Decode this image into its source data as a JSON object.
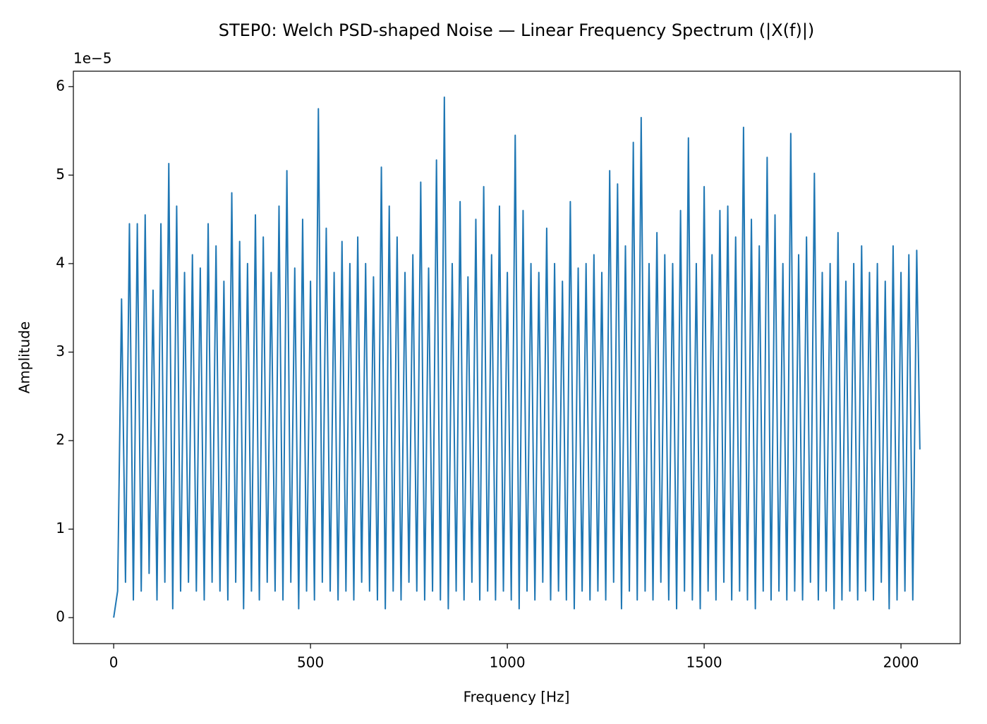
{
  "chart_data": {
    "type": "line",
    "title": "STEP0: Welch PSD-shaped Noise — Linear Frequency Spectrum (|X(f)|)",
    "xlabel": "Frequency [Hz]",
    "ylabel": "Amplitude",
    "y_offset_label": "1e−5",
    "xlim": [
      -102.4,
      2150.4
    ],
    "xticks": [
      0,
      500,
      1000,
      1500,
      2000
    ],
    "ylim": [
      -0.294,
      6.174
    ],
    "yticks": [
      0,
      1,
      2,
      3,
      4,
      5,
      6
    ],
    "x": [
      0,
      10,
      20,
      30,
      40,
      50,
      60,
      70,
      80,
      90,
      100,
      110,
      120,
      130,
      140,
      150,
      160,
      170,
      180,
      190,
      200,
      210,
      220,
      230,
      240,
      250,
      260,
      270,
      280,
      290,
      300,
      310,
      320,
      330,
      340,
      350,
      360,
      370,
      380,
      390,
      400,
      410,
      420,
      430,
      440,
      450,
      460,
      470,
      480,
      490,
      500,
      510,
      520,
      530,
      540,
      550,
      560,
      570,
      580,
      590,
      600,
      610,
      620,
      630,
      640,
      650,
      660,
      670,
      680,
      690,
      700,
      710,
      720,
      730,
      740,
      750,
      760,
      770,
      780,
      790,
      800,
      810,
      820,
      830,
      840,
      850,
      860,
      870,
      880,
      890,
      900,
      910,
      920,
      930,
      940,
      950,
      960,
      970,
      980,
      990,
      1000,
      1010,
      1020,
      1030,
      1040,
      1050,
      1060,
      1070,
      1080,
      1090,
      1100,
      1110,
      1120,
      1130,
      1140,
      1150,
      1160,
      1170,
      1180,
      1190,
      1200,
      1210,
      1220,
      1230,
      1240,
      1250,
      1260,
      1270,
      1280,
      1290,
      1300,
      1310,
      1320,
      1330,
      1340,
      1350,
      1360,
      1370,
      1380,
      1390,
      1400,
      1410,
      1420,
      1430,
      1440,
      1450,
      1460,
      1470,
      1480,
      1490,
      1500,
      1510,
      1520,
      1530,
      1540,
      1550,
      1560,
      1570,
      1580,
      1590,
      1600,
      1610,
      1620,
      1630,
      1640,
      1650,
      1660,
      1670,
      1680,
      1690,
      1700,
      1710,
      1720,
      1730,
      1740,
      1750,
      1760,
      1770,
      1780,
      1790,
      1800,
      1810,
      1820,
      1830,
      1840,
      1850,
      1860,
      1870,
      1880,
      1890,
      1900,
      1910,
      1920,
      1930,
      1940,
      1950,
      1960,
      1970,
      1980,
      1990,
      2000,
      2010,
      2020,
      2030,
      2040,
      2048
    ],
    "series": [
      {
        "color": "#1f77b4",
        "values": [
          0,
          0.3,
          3.6,
          0.4,
          4.45,
          0.2,
          4.45,
          0.3,
          4.55,
          0.5,
          3.7,
          0.2,
          4.45,
          0.4,
          5.13,
          0.1,
          4.65,
          0.3,
          3.9,
          0.4,
          4.1,
          0.3,
          3.95,
          0.2,
          4.45,
          0.4,
          4.2,
          0.3,
          3.8,
          0.2,
          4.8,
          0.4,
          4.25,
          0.1,
          4.0,
          0.3,
          4.55,
          0.2,
          4.3,
          0.4,
          3.9,
          0.3,
          4.65,
          0.2,
          5.05,
          0.4,
          3.95,
          0.1,
          4.5,
          0.3,
          3.8,
          0.2,
          5.75,
          0.4,
          4.4,
          0.3,
          3.9,
          0.2,
          4.25,
          0.3,
          4.0,
          0.2,
          4.3,
          0.4,
          4.0,
          0.3,
          3.85,
          0.2,
          5.09,
          0.1,
          4.65,
          0.3,
          4.3,
          0.2,
          3.9,
          0.4,
          4.1,
          0.3,
          4.92,
          0.2,
          3.95,
          0.3,
          5.17,
          0.2,
          5.88,
          0.1,
          4.0,
          0.3,
          4.7,
          0.2,
          3.85,
          0.4,
          4.5,
          0.2,
          4.87,
          0.3,
          4.1,
          0.2,
          4.65,
          0.3,
          3.9,
          0.2,
          5.45,
          0.1,
          4.6,
          0.3,
          4.0,
          0.2,
          3.9,
          0.4,
          4.4,
          0.2,
          4.0,
          0.3,
          3.8,
          0.2,
          4.7,
          0.1,
          3.95,
          0.3,
          4.0,
          0.2,
          4.1,
          0.3,
          3.9,
          0.2,
          5.05,
          0.4,
          4.9,
          0.1,
          4.2,
          0.3,
          5.37,
          0.2,
          5.65,
          0.3,
          4.0,
          0.2,
          4.35,
          0.4,
          4.1,
          0.2,
          4.0,
          0.1,
          4.6,
          0.3,
          5.42,
          0.2,
          4.0,
          0.1,
          4.87,
          0.3,
          4.1,
          0.2,
          4.6,
          0.4,
          4.65,
          0.2,
          4.3,
          0.3,
          5.54,
          0.2,
          4.5,
          0.1,
          4.2,
          0.3,
          5.2,
          0.2,
          4.55,
          0.3,
          4.0,
          0.2,
          5.47,
          0.3,
          4.1,
          0.2,
          4.3,
          0.4,
          5.02,
          0.2,
          3.9,
          0.3,
          4.0,
          0.1,
          4.35,
          0.2,
          3.8,
          0.3,
          4.0,
          0.2,
          4.2,
          0.3,
          3.9,
          0.2,
          4.0,
          0.4,
          3.8,
          0.1,
          4.2,
          0.2,
          3.9,
          0.3,
          4.1,
          0.2,
          4.15,
          1.9
        ]
      }
    ]
  }
}
